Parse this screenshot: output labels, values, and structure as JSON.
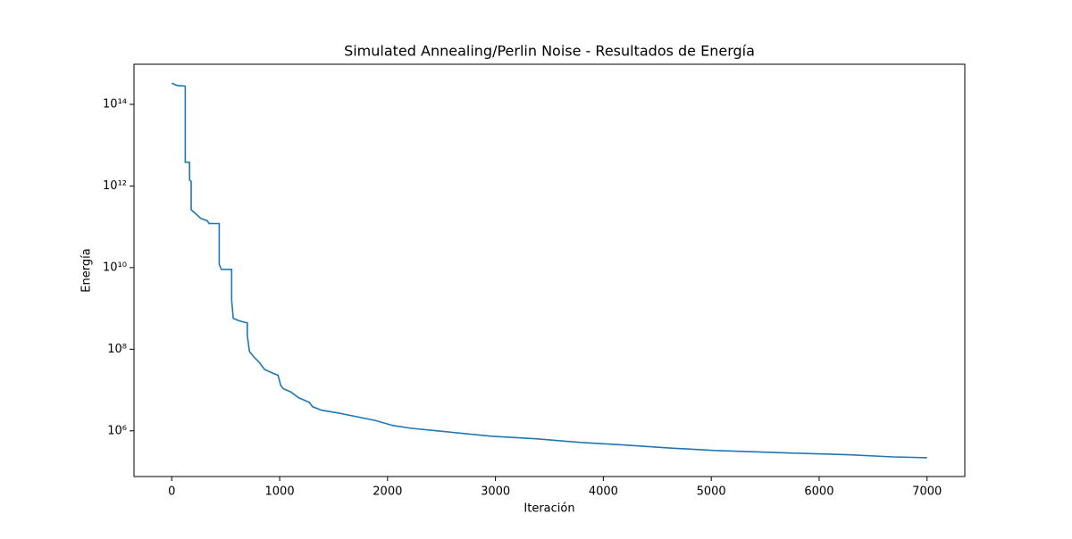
{
  "chart_data": {
    "type": "line",
    "title": "Simulated Annealing/Perlin Noise - Resultados de Energía",
    "xlabel": "Iteración",
    "ylabel": "Energía",
    "yscale": "log",
    "grid": false,
    "x": [
      0,
      50,
      125,
      125,
      165,
      165,
      180,
      180,
      230,
      270,
      330,
      345,
      440,
      440,
      460,
      555,
      555,
      570,
      630,
      700,
      700,
      720,
      760,
      810,
      860,
      935,
      985,
      1010,
      1035,
      1100,
      1175,
      1275,
      1305,
      1390,
      1555,
      1720,
      1885,
      2050,
      2215,
      2545,
      2960,
      3375,
      3790,
      4200,
      4615,
      5030,
      5855,
      6270,
      6685,
      7000
    ],
    "series": [
      {
        "name": "Energía",
        "color": "#1f77b4",
        "values": [
          330000000000000,
          290000000000000,
          280000000000000,
          3800000000000,
          3800000000000,
          1400000000000,
          1300000000000,
          260000000000,
          200000000000,
          160000000000,
          140000000000,
          120000000000,
          120000000000,
          12000000000,
          9000000000,
          9000000000,
          1600000000,
          570000000,
          490000000,
          440000000,
          220000000,
          88000000,
          65000000,
          48000000,
          32000000,
          26000000,
          23000000,
          13000000,
          10700000,
          9100000,
          6500000,
          5000000,
          3900000,
          3200000,
          2700000,
          2200000,
          1800000,
          1350000,
          1160000,
          950000,
          740000,
          640000,
          520000,
          450000,
          380000,
          330000,
          280000,
          260000,
          230000,
          220000
        ]
      }
    ],
    "xlim": [
      -350,
      7350
    ],
    "ylim": [
      76000,
      960000000000000
    ],
    "xticks": [
      0,
      1000,
      2000,
      3000,
      4000,
      5000,
      6000,
      7000
    ],
    "yticks": [
      {
        "value": 1000000,
        "label": "10⁶"
      },
      {
        "value": 100000000,
        "label": "10⁸"
      },
      {
        "value": 10000000000,
        "label": "10¹⁰"
      },
      {
        "value": 1000000000000,
        "label": "10¹²"
      },
      {
        "value": 100000000000000,
        "label": "10¹⁴"
      }
    ]
  }
}
